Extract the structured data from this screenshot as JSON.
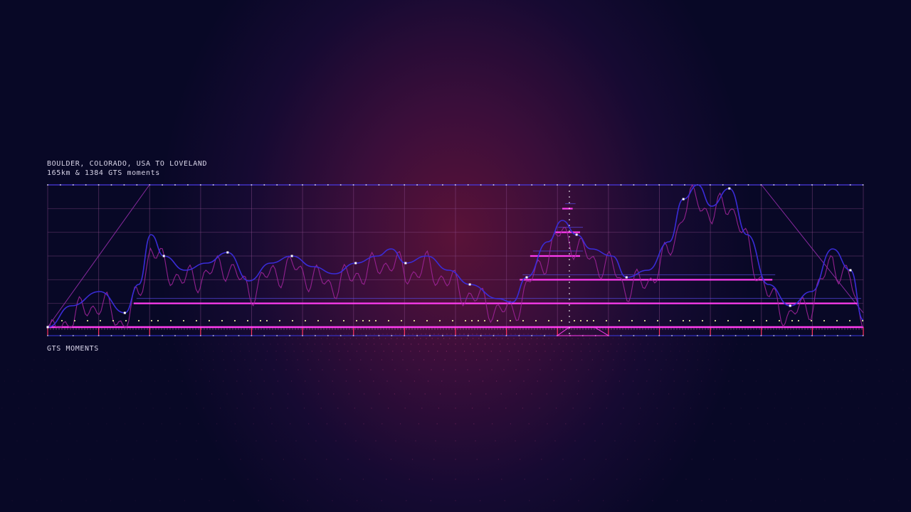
{
  "header": {
    "title": "BOULDER, COLORADO, USA TO LOVELAND",
    "subtitle": "165km & 1384 GTS moments"
  },
  "footer": {
    "label": "GTS MOMENTS"
  },
  "colors": {
    "background": "#080826",
    "glow": "#5a1238",
    "elevation_line": "#3a2cd8",
    "moments_line": "#a0249a",
    "accent": "#ff3cf0",
    "grid": "#8a4a8a",
    "markers": "#f0f0a0"
  },
  "chart_data": {
    "type": "line",
    "title": "BOULDER, COLORADO, USA TO LOVELAND",
    "xlabel": "GTS MOMENTS",
    "xlim": [
      0,
      165
    ],
    "ylim": [
      0,
      1
    ],
    "grid": true,
    "series": [
      {
        "x": [
          0,
          4.8,
          10.5,
          15.6,
          18.4,
          20.9,
          23.5,
          27.8,
          32.1,
          36.4,
          40.7,
          45.1,
          49.4,
          53.7,
          58.0,
          62.3,
          66.7,
          69.5,
          72.4,
          76.7,
          81.1,
          85.4,
          91.1,
          94.0,
          96.9,
          101.2,
          104.1,
          107.0,
          109.9,
          114.2,
          117.1,
          121.4,
          125.7,
          128.6,
          131.5,
          134.3,
          137.9,
          141.5,
          145.8,
          150.2,
          154.5,
          158.8,
          162.4,
          165
        ],
        "y": [
          0,
          0.15,
          0.25,
          0.1,
          0.3,
          0.65,
          0.5,
          0.4,
          0.45,
          0.525,
          0.325,
          0.45,
          0.5,
          0.425,
          0.375,
          0.45,
          0.5,
          0.55,
          0.45,
          0.5,
          0.4,
          0.3,
          0.2,
          0.175,
          0.35,
          0.6,
          0.75,
          0.65,
          0.55,
          0.5,
          0.35,
          0.4,
          0.6,
          0.9,
          1.0,
          0.85,
          0.975,
          0.65,
          0.3,
          0.15,
          0.25,
          0.55,
          0.4,
          0.05
        ]
      }
    ],
    "levels": [
      {
        "y": 0.167,
        "from": 17.4,
        "to": 164
      },
      {
        "y": 0.333,
        "from": 95.5,
        "to": 146.6
      },
      {
        "y": 0.5,
        "from": 97.6,
        "to": 107.7
      },
      {
        "y": 0.667,
        "from": 102.7,
        "to": 107.7
      },
      {
        "y": 0.833,
        "from": 104.1,
        "to": 106.2
      }
    ]
  }
}
